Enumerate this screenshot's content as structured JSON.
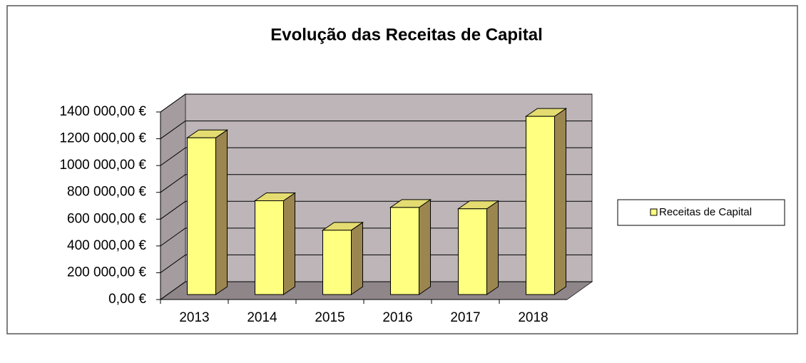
{
  "chart_data": {
    "type": "bar3d",
    "title": "Evolução das Receitas de Capital",
    "categories": [
      "2013",
      "2014",
      "2015",
      "2016",
      "2017",
      "2018"
    ],
    "series": [
      {
        "name": "Receitas de Capital",
        "color": "#ffff80",
        "values": [
          1170000,
          700000,
          480000,
          650000,
          640000,
          1330000
        ]
      }
    ],
    "ylim": [
      0,
      1400000
    ],
    "yticks": [
      {
        "value": 0,
        "label": "0,00 €"
      },
      {
        "value": 200000,
        "label": "200 000,00 €"
      },
      {
        "value": 400000,
        "label": "400 000,00 €"
      },
      {
        "value": 600000,
        "label": "600 000,00 €"
      },
      {
        "value": 800000,
        "label": "800 000,00 €"
      },
      {
        "value": 1000000,
        "label": "1000 000,00 €"
      },
      {
        "value": 1200000,
        "label": "1200 000,00 €"
      },
      {
        "value": 1400000,
        "label": "1400 000,00 €"
      }
    ],
    "grid": true,
    "legend": "right"
  }
}
